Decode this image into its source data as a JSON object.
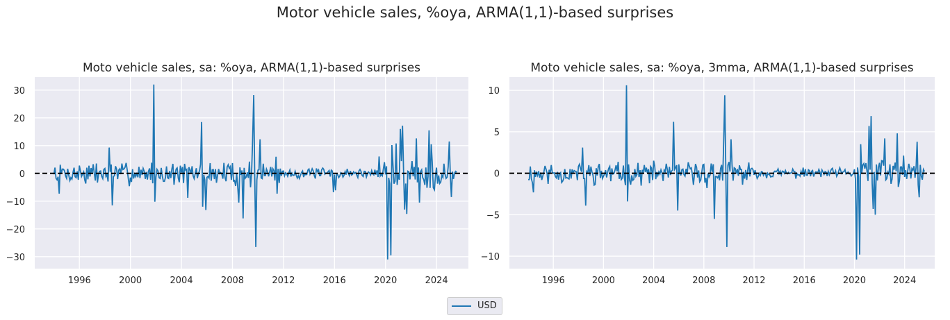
{
  "figure": {
    "suptitle": "Motor vehicle sales, %oya, ARMA(1,1)-based surprises"
  },
  "legend": {
    "entries": [
      {
        "label": "USD",
        "color": "#1f77b4"
      }
    ],
    "placement": "bottom-center"
  },
  "chart_data": [
    {
      "type": "line",
      "title": "Moto vehicle sales, sa: %oya, ARMA(1,1)-based surprises",
      "xlabel": "",
      "ylabel": "",
      "xlim": [
        1992.5,
        2026.5
      ],
      "ylim": [
        -34.3,
        34.7
      ],
      "xticks": [
        1996,
        2000,
        2004,
        2008,
        2012,
        2016,
        2020,
        2024
      ],
      "xtick_labels": [
        "1996",
        "2000",
        "2004",
        "2008",
        "2012",
        "2016",
        "2020",
        "2024"
      ],
      "yticks": [
        -30,
        -20,
        -10,
        0,
        10,
        20,
        30
      ],
      "ytick_labels": [
        "−30",
        "−20",
        "−10",
        "0",
        "10",
        "20",
        "30"
      ],
      "grid": true,
      "reference_line": {
        "y": 0,
        "style": "dashed",
        "color": "#000000"
      },
      "series": [
        {
          "name": "USD",
          "color": "#1f77b4",
          "x_start": 1994.0,
          "x_end": 2025.6,
          "frequency": "monthly",
          "noise_scale": 3.2,
          "seed": 7,
          "notable_points": [
            {
              "x": 1994.4,
              "y": -7.3
            },
            {
              "x": 1998.3,
              "y": 9.3
            },
            {
              "x": 1998.6,
              "y": -11.5
            },
            {
              "x": 2001.8,
              "y": 32.0
            },
            {
              "x": 2001.9,
              "y": -10.2
            },
            {
              "x": 2004.5,
              "y": -8.8
            },
            {
              "x": 2005.6,
              "y": 18.5
            },
            {
              "x": 2005.7,
              "y": -12.0
            },
            {
              "x": 2005.9,
              "y": -13.2
            },
            {
              "x": 2008.5,
              "y": -10.5
            },
            {
              "x": 2008.8,
              "y": -16.2
            },
            {
              "x": 2009.6,
              "y": 12.0
            },
            {
              "x": 2009.7,
              "y": 28.2
            },
            {
              "x": 2009.8,
              "y": -26.5
            },
            {
              "x": 2010.2,
              "y": 12.3
            },
            {
              "x": 2011.4,
              "y": 6.0
            },
            {
              "x": 2011.5,
              "y": -7.3
            },
            {
              "x": 2015.9,
              "y": -6.8
            },
            {
              "x": 2016.1,
              "y": -6.1
            },
            {
              "x": 2019.5,
              "y": 6.1
            },
            {
              "x": 2020.2,
              "y": -31.0
            },
            {
              "x": 2020.4,
              "y": -29.5
            },
            {
              "x": 2020.5,
              "y": 10.2
            },
            {
              "x": 2020.8,
              "y": 10.8
            },
            {
              "x": 2021.2,
              "y": 16.0
            },
            {
              "x": 2021.3,
              "y": 17.2
            },
            {
              "x": 2021.5,
              "y": -13.0
            },
            {
              "x": 2021.7,
              "y": -14.6
            },
            {
              "x": 2022.4,
              "y": 12.6
            },
            {
              "x": 2022.7,
              "y": -10.5
            },
            {
              "x": 2023.4,
              "y": 15.5
            },
            {
              "x": 2023.6,
              "y": 10.5
            },
            {
              "x": 2025.0,
              "y": 11.5
            },
            {
              "x": 2025.2,
              "y": -8.5
            }
          ]
        }
      ]
    },
    {
      "type": "line",
      "title": "Moto vehicle sales, sa: %oya, 3mma, ARMA(1,1)-based surprises",
      "xlabel": "",
      "ylabel": "",
      "xlim": [
        1992.5,
        2026.4
      ],
      "ylim": [
        -11.5,
        11.6
      ],
      "xticks": [
        1996,
        2000,
        2004,
        2008,
        2012,
        2016,
        2020,
        2024
      ],
      "xtick_labels": [
        "1996",
        "2000",
        "2004",
        "2008",
        "2012",
        "2016",
        "2020",
        "2024"
      ],
      "yticks": [
        -10,
        -5,
        0,
        5,
        10
      ],
      "ytick_labels": [
        "−10",
        "−5",
        "0",
        "5",
        "10"
      ],
      "grid": true,
      "reference_line": {
        "y": 0,
        "style": "dashed",
        "color": "#000000"
      },
      "series": [
        {
          "name": "USD",
          "color": "#1f77b4",
          "x_start": 1994.0,
          "x_end": 2025.6,
          "frequency": "monthly",
          "noise_scale": 1.05,
          "seed": 11,
          "notable_points": [
            {
              "x": 1994.4,
              "y": -2.3
            },
            {
              "x": 1998.3,
              "y": 3.1
            },
            {
              "x": 1998.6,
              "y": -3.9
            },
            {
              "x": 2001.8,
              "y": 10.6
            },
            {
              "x": 2001.9,
              "y": -3.4
            },
            {
              "x": 2005.6,
              "y": 6.2
            },
            {
              "x": 2005.9,
              "y": -4.5
            },
            {
              "x": 2008.8,
              "y": -5.5
            },
            {
              "x": 2009.6,
              "y": 4.0
            },
            {
              "x": 2009.7,
              "y": 9.4
            },
            {
              "x": 2009.8,
              "y": -8.9
            },
            {
              "x": 2010.2,
              "y": 4.1
            },
            {
              "x": 2020.2,
              "y": -10.4
            },
            {
              "x": 2020.4,
              "y": -9.8
            },
            {
              "x": 2020.5,
              "y": 3.5
            },
            {
              "x": 2021.2,
              "y": 5.7
            },
            {
              "x": 2021.3,
              "y": 6.9
            },
            {
              "x": 2021.5,
              "y": -4.3
            },
            {
              "x": 2021.7,
              "y": -5.0
            },
            {
              "x": 2022.4,
              "y": 4.2
            },
            {
              "x": 2023.4,
              "y": 4.8
            },
            {
              "x": 2025.0,
              "y": 3.8
            },
            {
              "x": 2025.2,
              "y": -2.9
            }
          ]
        }
      ]
    }
  ]
}
